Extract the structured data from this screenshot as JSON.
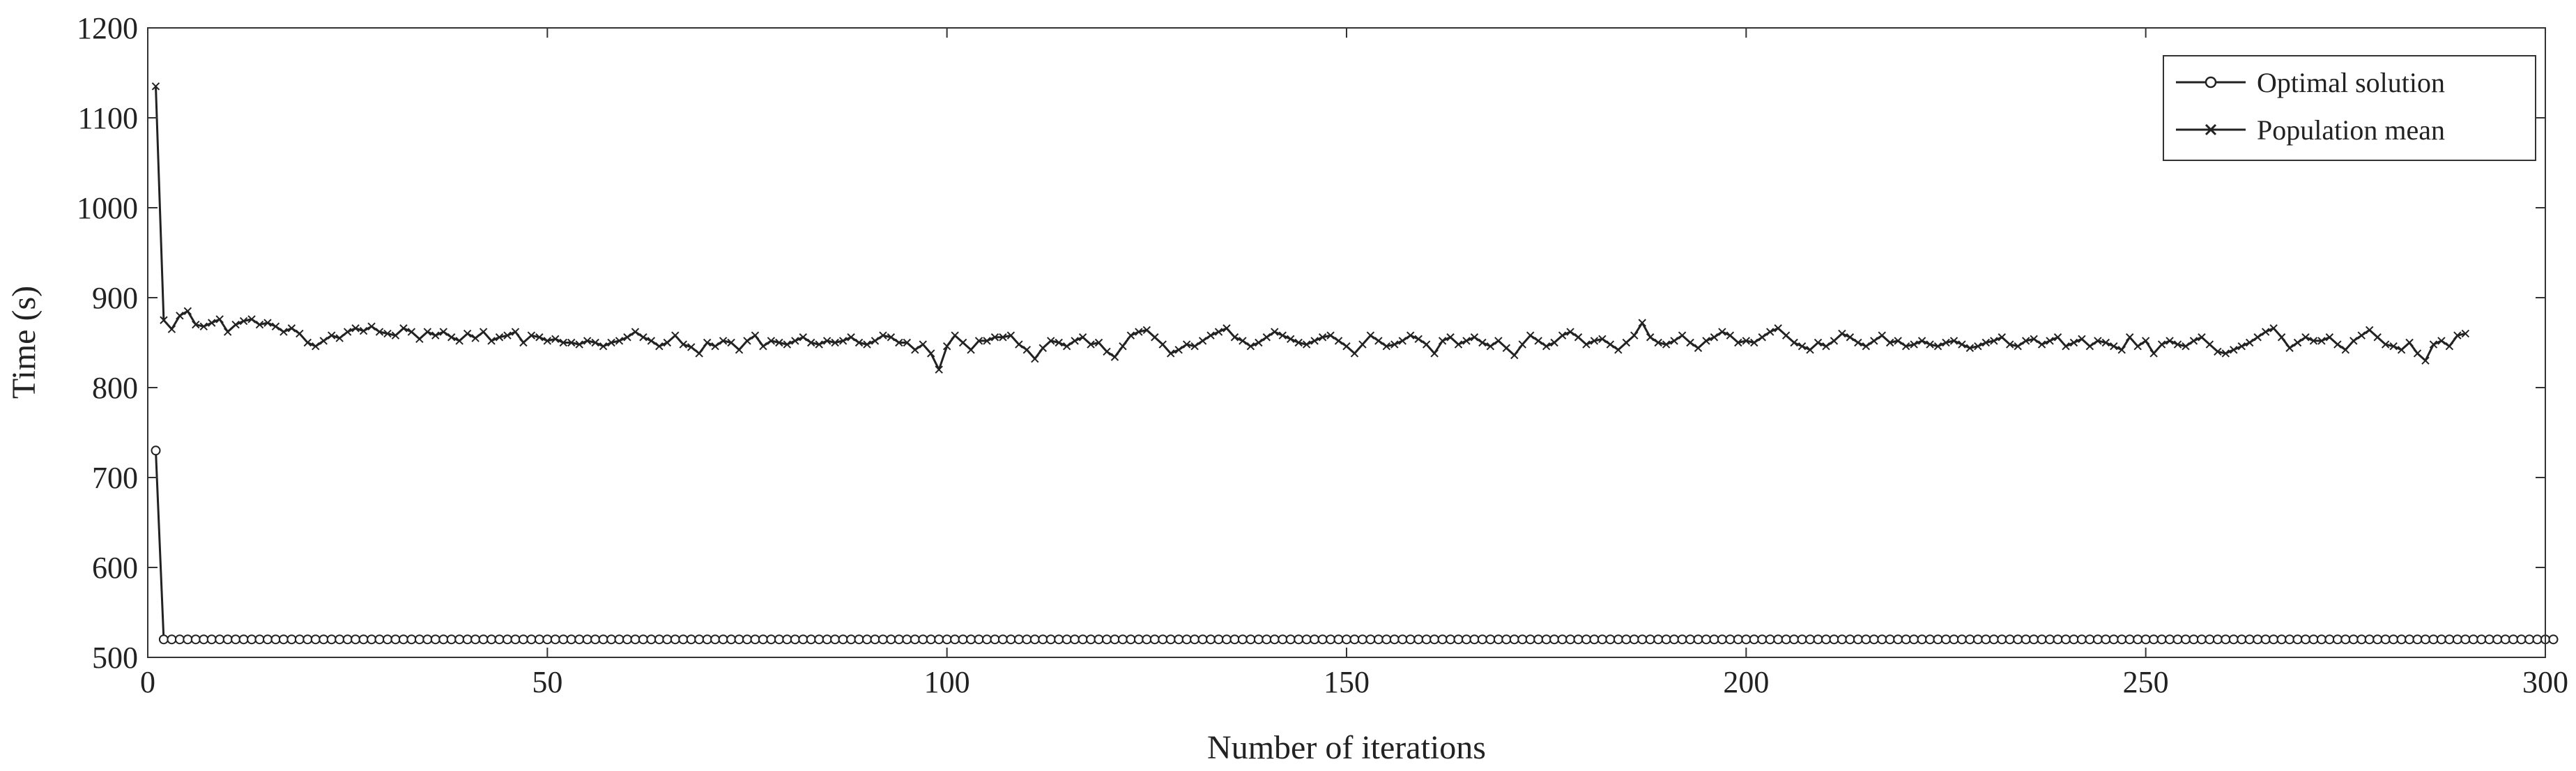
{
  "chart_data": {
    "type": "line",
    "title": "",
    "xlabel": "Number of iterations",
    "ylabel": "Time (s)",
    "xlim": [
      0,
      300
    ],
    "ylim": [
      500,
      1200
    ],
    "xticks": [
      0,
      50,
      100,
      150,
      200,
      250,
      300
    ],
    "yticks": [
      500,
      600,
      700,
      800,
      900,
      1000,
      1100,
      1200
    ],
    "grid": false,
    "legend_position": "top-right",
    "series": [
      {
        "name": "Optimal solution",
        "marker": "circle",
        "color": "#222222",
        "x_start": 1,
        "x_step": 1,
        "values": [
          730,
          520,
          520,
          520,
          520,
          520,
          520,
          520,
          520,
          520,
          520,
          520,
          520,
          520,
          520,
          520,
          520,
          520,
          520,
          520,
          520,
          520,
          520,
          520,
          520,
          520,
          520,
          520,
          520,
          520,
          520,
          520,
          520,
          520,
          520,
          520,
          520,
          520,
          520,
          520,
          520,
          520,
          520,
          520,
          520,
          520,
          520,
          520,
          520,
          520,
          520,
          520,
          520,
          520,
          520,
          520,
          520,
          520,
          520,
          520,
          520,
          520,
          520,
          520,
          520,
          520,
          520,
          520,
          520,
          520,
          520,
          520,
          520,
          520,
          520,
          520,
          520,
          520,
          520,
          520,
          520,
          520,
          520,
          520,
          520,
          520,
          520,
          520,
          520,
          520,
          520,
          520,
          520,
          520,
          520,
          520,
          520,
          520,
          520,
          520,
          520,
          520,
          520,
          520,
          520,
          520,
          520,
          520,
          520,
          520,
          520,
          520,
          520,
          520,
          520,
          520,
          520,
          520,
          520,
          520,
          520,
          520,
          520,
          520,
          520,
          520,
          520,
          520,
          520,
          520,
          520,
          520,
          520,
          520,
          520,
          520,
          520,
          520,
          520,
          520,
          520,
          520,
          520,
          520,
          520,
          520,
          520,
          520,
          520,
          520,
          520,
          520,
          520,
          520,
          520,
          520,
          520,
          520,
          520,
          520,
          520,
          520,
          520,
          520,
          520,
          520,
          520,
          520,
          520,
          520,
          520,
          520,
          520,
          520,
          520,
          520,
          520,
          520,
          520,
          520,
          520,
          520,
          520,
          520,
          520,
          520,
          520,
          520,
          520,
          520,
          520,
          520,
          520,
          520,
          520,
          520,
          520,
          520,
          520,
          520,
          520,
          520,
          520,
          520,
          520,
          520,
          520,
          520,
          520,
          520,
          520,
          520,
          520,
          520,
          520,
          520,
          520,
          520,
          520,
          520,
          520,
          520,
          520,
          520,
          520,
          520,
          520,
          520,
          520,
          520,
          520,
          520,
          520,
          520,
          520,
          520,
          520,
          520,
          520,
          520,
          520,
          520,
          520,
          520,
          520,
          520,
          520,
          520,
          520,
          520,
          520,
          520,
          520,
          520,
          520,
          520,
          520,
          520,
          520,
          520,
          520,
          520,
          520,
          520,
          520,
          520,
          520,
          520,
          520,
          520,
          520,
          520,
          520,
          520,
          520,
          520,
          520,
          520,
          520,
          520,
          520,
          520,
          520,
          520,
          520,
          520,
          520,
          520,
          520,
          520,
          520,
          520,
          520,
          520,
          520,
          520,
          520,
          520,
          520,
          520,
          520
        ]
      },
      {
        "name": "Population mean",
        "marker": "x",
        "color": "#222222",
        "x_start": 1,
        "x_step": 1,
        "values": [
          1135,
          875,
          865,
          880,
          885,
          870,
          868,
          872,
          876,
          862,
          870,
          874,
          876,
          870,
          872,
          868,
          862,
          866,
          860,
          850,
          846,
          852,
          858,
          855,
          862,
          866,
          863,
          868,
          862,
          860,
          858,
          866,
          862,
          854,
          862,
          858,
          862,
          856,
          852,
          860,
          855,
          862,
          852,
          856,
          858,
          862,
          850,
          858,
          856,
          852,
          854,
          850,
          850,
          848,
          852,
          850,
          846,
          850,
          852,
          856,
          862,
          856,
          852,
          846,
          850,
          858,
          848,
          845,
          838,
          850,
          846,
          852,
          850,
          842,
          852,
          858,
          846,
          852,
          850,
          848,
          852,
          856,
          850,
          848,
          852,
          850,
          852,
          856,
          850,
          848,
          852,
          858,
          856,
          850,
          850,
          842,
          848,
          838,
          820,
          846,
          858,
          850,
          842,
          852,
          852,
          856,
          856,
          858,
          848,
          842,
          832,
          844,
          852,
          850,
          846,
          852,
          856,
          848,
          850,
          840,
          834,
          846,
          858,
          862,
          864,
          856,
          848,
          838,
          842,
          848,
          846,
          852,
          858,
          862,
          866,
          856,
          852,
          846,
          850,
          856,
          862,
          858,
          854,
          850,
          848,
          852,
          856,
          858,
          852,
          846,
          838,
          848,
          858,
          852,
          846,
          848,
          852,
          858,
          854,
          848,
          838,
          852,
          856,
          848,
          852,
          856,
          850,
          846,
          852,
          844,
          836,
          848,
          858,
          852,
          846,
          850,
          858,
          862,
          856,
          848,
          852,
          854,
          848,
          842,
          850,
          858,
          872,
          856,
          850,
          848,
          852,
          858,
          850,
          844,
          852,
          856,
          862,
          858,
          850,
          852,
          850,
          856,
          862,
          866,
          858,
          850,
          846,
          842,
          850,
          846,
          852,
          860,
          856,
          850,
          846,
          852,
          858,
          850,
          852,
          846,
          848,
          852,
          848,
          846,
          850,
          852,
          848,
          844,
          846,
          850,
          852,
          856,
          848,
          846,
          852,
          854,
          848,
          852,
          856,
          846,
          850,
          854,
          846,
          852,
          850,
          846,
          842,
          856,
          846,
          852,
          838,
          848,
          852,
          848,
          846,
          852,
          856,
          848,
          840,
          838,
          842,
          846,
          850,
          856,
          862,
          866,
          856,
          844,
          850,
          856,
          852,
          852,
          856,
          848,
          842,
          852,
          858,
          864,
          856,
          848,
          846,
          842,
          850,
          838,
          830,
          848,
          852,
          846,
          858,
          860
        ]
      }
    ]
  }
}
